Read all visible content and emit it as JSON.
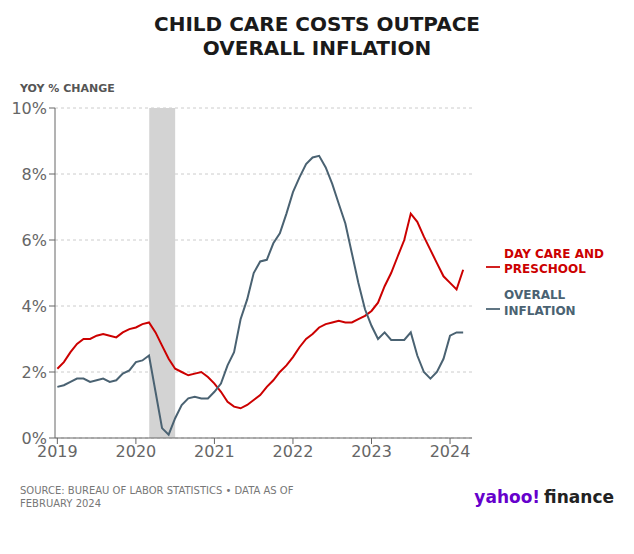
{
  "chart_data": {
    "type": "line",
    "title": "CHILD CARE COSTS OUTPACE\nOVERALL INFLATION",
    "y_label": "YOY % CHANGE",
    "x": [
      2019.0,
      2019.083,
      2019.167,
      2019.25,
      2019.333,
      2019.417,
      2019.5,
      2019.583,
      2019.667,
      2019.75,
      2019.833,
      2019.917,
      2020.0,
      2020.083,
      2020.167,
      2020.25,
      2020.333,
      2020.417,
      2020.5,
      2020.583,
      2020.667,
      2020.75,
      2020.833,
      2020.917,
      2021.0,
      2021.083,
      2021.167,
      2021.25,
      2021.333,
      2021.417,
      2021.5,
      2021.583,
      2021.667,
      2021.75,
      2021.833,
      2021.917,
      2022.0,
      2022.083,
      2022.167,
      2022.25,
      2022.333,
      2022.417,
      2022.5,
      2022.583,
      2022.667,
      2022.75,
      2022.833,
      2022.917,
      2023.0,
      2023.083,
      2023.167,
      2023.25,
      2023.333,
      2023.417,
      2023.5,
      2023.583,
      2023.667,
      2023.75,
      2023.833,
      2023.917,
      2024.0,
      2024.083,
      2024.167
    ],
    "series": [
      {
        "name": "DAY CARE AND\nPRESCHOOL",
        "color": "#cc0000",
        "values": [
          2.1,
          2.3,
          2.6,
          2.85,
          3.0,
          3.0,
          3.1,
          3.15,
          3.1,
          3.05,
          3.2,
          3.3,
          3.35,
          3.45,
          3.5,
          3.2,
          2.8,
          2.4,
          2.1,
          2.0,
          1.9,
          1.95,
          2.0,
          1.85,
          1.65,
          1.4,
          1.1,
          0.95,
          0.9,
          1.0,
          1.15,
          1.3,
          1.55,
          1.75,
          2.0,
          2.2,
          2.45,
          2.75,
          3.0,
          3.15,
          3.35,
          3.45,
          3.5,
          3.55,
          3.5,
          3.5,
          3.6,
          3.7,
          3.85,
          4.1,
          4.6,
          5.0,
          5.5,
          6.0,
          6.8,
          6.55,
          6.1,
          5.7,
          5.3,
          4.9,
          4.7,
          4.5,
          5.1
        ]
      },
      {
        "name": "OVERALL\nINFLATION",
        "color": "#4a6272",
        "values": [
          1.55,
          1.6,
          1.7,
          1.8,
          1.8,
          1.7,
          1.75,
          1.8,
          1.7,
          1.75,
          1.95,
          2.05,
          2.3,
          2.35,
          2.5,
          1.4,
          0.3,
          0.1,
          0.6,
          1.0,
          1.2,
          1.25,
          1.2,
          1.2,
          1.4,
          1.65,
          2.2,
          2.6,
          3.6,
          4.2,
          5.0,
          5.35,
          5.4,
          5.9,
          6.2,
          6.8,
          7.45,
          7.9,
          8.3,
          8.5,
          8.55,
          8.2,
          7.7,
          7.1,
          6.5,
          5.6,
          4.7,
          3.9,
          3.4,
          3.0,
          3.2,
          2.97,
          2.97,
          2.97,
          3.2,
          2.5,
          2.0,
          1.8,
          2.0,
          2.4,
          3.1,
          3.2,
          3.2
        ]
      }
    ],
    "shaded_region": {
      "start": 2020.17,
      "end": 2020.5,
      "color": "#d3d3d3"
    },
    "xlim": [
      2018.97,
      2024.28
    ],
    "xticks": [
      2019,
      2020,
      2021,
      2022,
      2023,
      2024
    ],
    "ylim": [
      0,
      10
    ],
    "yticks": [
      {
        "value": 0,
        "label": "0%"
      },
      {
        "value": 2,
        "label": "2%"
      },
      {
        "value": 4,
        "label": "4%"
      },
      {
        "value": 6,
        "label": "6%"
      },
      {
        "value": 8,
        "label": "8%"
      },
      {
        "value": 10,
        "label": "10%"
      }
    ],
    "grid": "y",
    "legend": "right",
    "annotations": [
      {
        "text": "SOURCE: BUREAU OF LABOR STATISTICS • DATA AS OF\nFEBRUARY 2024"
      },
      {
        "text": "yahoo!",
        "color": "#6600cc"
      },
      {
        "text": "finance",
        "color": "#222222"
      }
    ]
  }
}
